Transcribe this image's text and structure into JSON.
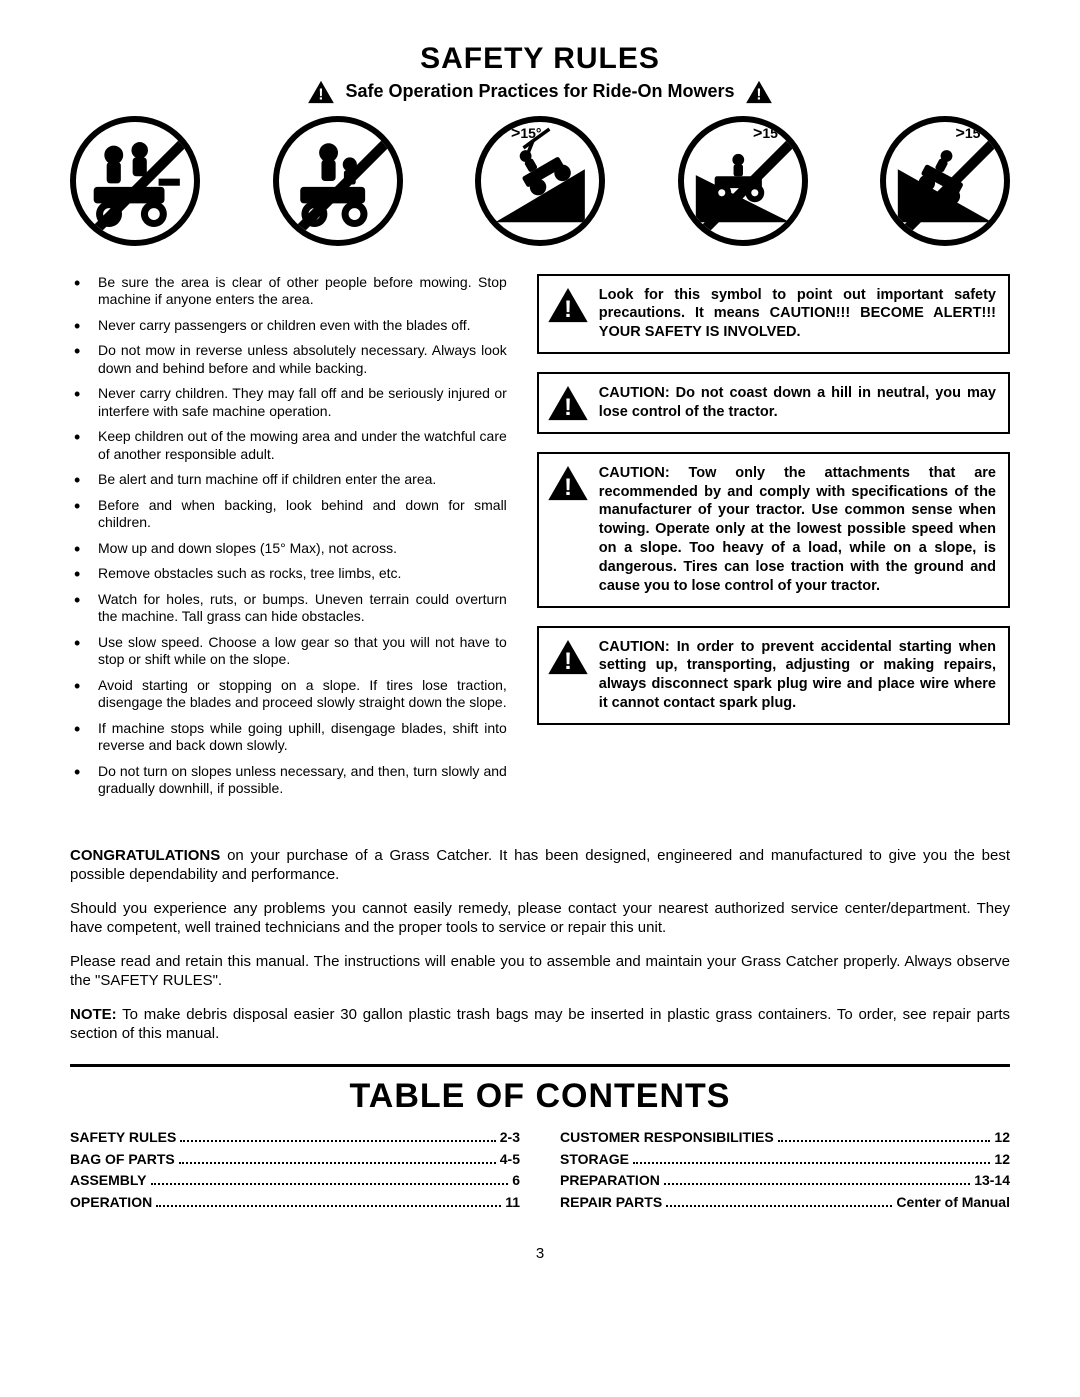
{
  "header": {
    "title": "SAFETY RULES",
    "subtitle": "Safe Operation Practices for Ride-On Mowers"
  },
  "safety_icons": [
    {
      "crossed": true,
      "angle_label": null,
      "variant": "passenger"
    },
    {
      "crossed": true,
      "angle_label": null,
      "variant": "child"
    },
    {
      "crossed": false,
      "angle_label": "15°",
      "variant": "slope-up"
    },
    {
      "crossed": true,
      "angle_label": "15°",
      "variant": "slope-side",
      "angle_right": true
    },
    {
      "crossed": true,
      "angle_label": "15°",
      "variant": "slope-down",
      "angle_right": true
    }
  ],
  "bullets": [
    "Be sure the area is clear of other people before mowing. Stop machine if anyone enters the area.",
    "Never carry passengers or children even with the blades off.",
    "Do not mow in reverse unless absolutely necessary. Always look down and behind before and while backing.",
    "Never carry children. They may fall off and be seriously injured or interfere with safe machine operation.",
    "Keep children out of the mowing area and under the watchful care of another responsible adult.",
    "Be alert and turn machine off if children enter the area.",
    "Before and when backing, look behind and down for small children.",
    "Mow up and down slopes (15° Max), not across.",
    "Remove obstacles such as rocks, tree limbs, etc.",
    "Watch for holes, ruts, or bumps. Uneven terrain could overturn the machine. Tall grass can hide obstacles.",
    "Use slow speed. Choose a low gear so that you will not have to stop or shift while on the slope.",
    "Avoid starting or stopping on a slope. If tires lose traction, disengage the blades and proceed slowly straight down the slope.",
    "If machine stops while going uphill, disengage blades, shift into reverse and back down slowly.",
    "Do not turn on slopes unless necessary, and then, turn slowly and gradually downhill, if possible."
  ],
  "cautions": [
    "Look for this symbol to point out important safety precautions. It means CAUTION!!! BECOME ALERT!!! YOUR SAFETY IS INVOLVED.",
    "CAUTION: Do not coast down a hill in neutral, you may lose control of the tractor.",
    "CAUTION: Tow only the attachments that are recommended by and comply with specifications of the manufacturer of your tractor. Use common sense when towing. Operate only at the lowest possible speed when on a slope. Too heavy of a load, while on a slope, is dangerous. Tires can lose traction with the ground and cause you to lose control of your tractor.",
    "CAUTION: In order to prevent accidental starting when setting up, transporting, adjusting or making repairs, always disconnect spark plug wire and place wire where it cannot contact spark plug."
  ],
  "congrats": {
    "p1_bold": "CONGRATULATIONS",
    "p1_rest": " on your purchase of a Grass Catcher. It has been designed, engineered and manufactured to give you the best possible dependability and performance.",
    "p2": "Should you experience any problems you cannot easily remedy, please contact your nearest authorized service center/department. They have competent, well trained technicians and the proper tools to service or repair this unit.",
    "p3": "Please read and retain this manual. The instructions will enable you to assemble and maintain your Grass Catcher properly. Always observe the \"SAFETY RULES\".",
    "note_bold": "NOTE:",
    "note_rest": "  To make debris disposal easier 30 gallon plastic trash bags may be inserted in plastic grass containers. To order, see repair parts section of this manual."
  },
  "toc": {
    "title": "TABLE OF CONTENTS",
    "left": [
      {
        "label": "SAFETY RULES",
        "page": "2-3"
      },
      {
        "label": "BAG OF PARTS",
        "page": "4-5"
      },
      {
        "label": "ASSEMBLY",
        "page": "6"
      },
      {
        "label": "OPERATION",
        "page": "11"
      }
    ],
    "right": [
      {
        "label": "CUSTOMER RESPONSIBILITIES",
        "page": "12"
      },
      {
        "label": "STORAGE",
        "page": "12"
      },
      {
        "label": "PREPARATION",
        "page": "13-14"
      },
      {
        "label": "REPAIR PARTS",
        "page": "Center of Manual"
      }
    ]
  },
  "page_number": "3"
}
